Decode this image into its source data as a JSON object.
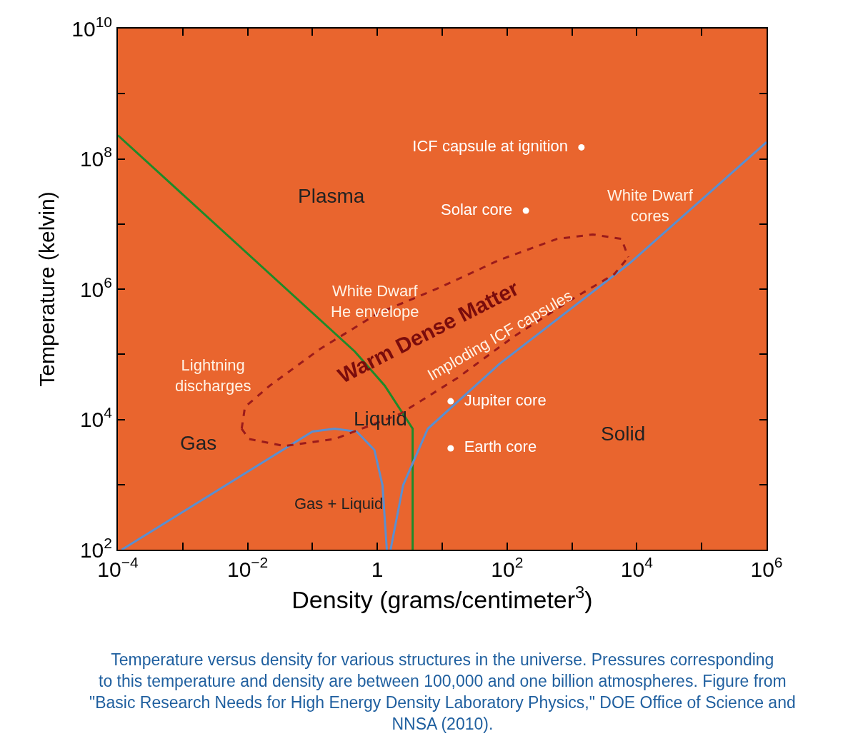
{
  "chart_data": {
    "type": "line",
    "xlabel": "Density (grams/centimeter$^{3}$)",
    "ylabel": "Temperature (kelvin)",
    "log": "xy",
    "grid": false,
    "legend": false,
    "marker": "none",
    "xlim": [
      0.0001,
      1000000
    ],
    "ylim": [
      100,
      10000000000
    ],
    "xticks": [
      {
        "value": 0.0001,
        "label": "10$^{−4}$"
      },
      {
        "value": 0.001,
        "label": null
      },
      {
        "value": 0.01,
        "label": "10$^{−2}$"
      },
      {
        "value": 0.1,
        "label": null
      },
      {
        "value": 1,
        "label": "1"
      },
      {
        "value": 10,
        "label": null
      },
      {
        "value": 100,
        "label": "10$^{2}$"
      },
      {
        "value": 1000,
        "label": null
      },
      {
        "value": 10000,
        "label": "10$^{4}$"
      },
      {
        "value": 100000,
        "label": null
      },
      {
        "value": 1000000,
        "label": "10$^{6}$"
      }
    ],
    "yticks": [
      {
        "value": 100,
        "label": "10$^{2}$"
      },
      {
        "value": 1000,
        "label": null
      },
      {
        "value": 10000,
        "label": "10$^{4}$"
      },
      {
        "value": 100000,
        "label": null
      },
      {
        "value": 1000000,
        "label": "10$^{6}$"
      },
      {
        "value": 10000000,
        "label": null
      },
      {
        "value": 100000000,
        "label": "10$^{8}$"
      },
      {
        "value": 1000000000,
        "label": null
      },
      {
        "value": 10000000000,
        "label": "10$^{10}$"
      }
    ],
    "series": [
      {
        "color": "#1f8a2a",
        "line_style": "solid",
        "x": [
          0.0001,
          0.45,
          1.3,
          3.5,
          3.5
        ],
        "values": [
          230000000,
          110000,
          33000,
          7200,
          100
        ]
      },
      {
        "color": "#5b8fd0",
        "line_style": "solid",
        "x": [
          0.000115,
          0.1,
          0.22,
          0.48,
          0.9,
          1.2,
          1.4
        ],
        "values": [
          100,
          6500,
          7200,
          6500,
          3400,
          980,
          100
        ]
      },
      {
        "color": "#5b8fd0",
        "line_style": "solid",
        "x": [
          1.6,
          2.5,
          6,
          76,
          7400,
          1000000
        ],
        "values": [
          100,
          980,
          7200,
          71000,
          2400000,
          180000000
        ]
      },
      {
        "color": "#9b1b1b",
        "line_style": "dashed",
        "x": [
          0.0081,
          0.0091,
          0.022,
          0.13,
          1.0,
          10,
          76,
          590,
          2100,
          5800,
          7400
        ],
        "values": [
          7200,
          15500,
          33000,
          120000,
          420000,
          1100000,
          2800000,
          5900000,
          6900000,
          5900000,
          3100000
        ]
      },
      {
        "color": "#9b1b1b",
        "line_style": "dashed",
        "x": [
          0.0081,
          0.0105,
          0.037,
          0.22,
          2.2,
          17,
          130,
          980,
          4500,
          7400
        ],
        "values": [
          7200,
          5000,
          3900,
          5000,
          12000,
          43000,
          190000,
          690000,
          1700000,
          3100000
        ]
      },
      {
        "type": "scatter",
        "name": "ICF capsule at ignition",
        "color": "#ffffff",
        "marker": "circle",
        "x": [
          1400
        ],
        "values": [
          150000000
        ]
      },
      {
        "type": "scatter",
        "name": "Solar core",
        "color": "#ffffff",
        "marker": "circle",
        "x": [
          195
        ],
        "values": [
          16000000
        ]
      },
      {
        "type": "scatter",
        "name": "Jupiter core",
        "color": "#ffffff",
        "marker": "circle",
        "x": [
          13.5
        ],
        "values": [
          19000
        ]
      },
      {
        "type": "scatter",
        "name": "Earth core",
        "color": "#ffffff",
        "marker": "circle",
        "x": [
          13.5
        ],
        "values": [
          3600
        ]
      }
    ],
    "annotations": [
      "Plasma",
      "Gas",
      "Gas + Liquid",
      "Liquid",
      "Solid",
      "Lightning discharges",
      "White Dwarf He envelope",
      "White Dwarf cores",
      "Warm Dense Matter",
      "Imploding ICF capsules",
      "Temperature versus density for various structures in the universe. Pressures corresponding to this temperature and density are between 100,000 and one billion atmospheres. Figure from \"Basic Research Needs for High Energy Density Laboratory Physics,\" DOE Office of Science and NNSA (2010)."
    ]
  }
}
